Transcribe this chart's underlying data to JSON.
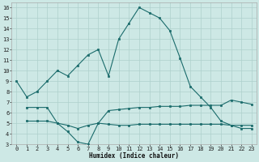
{
  "xlabel": "Humidex (Indice chaleur)",
  "ylabel": "",
  "bg_color": "#cde8e5",
  "line_color": "#1a6b6b",
  "grid_color": "#aed0cc",
  "xlim": [
    -0.5,
    23.5
  ],
  "ylim": [
    3,
    16.5
  ],
  "xticks": [
    0,
    1,
    2,
    3,
    4,
    5,
    6,
    7,
    8,
    9,
    10,
    11,
    12,
    13,
    14,
    15,
    16,
    17,
    18,
    19,
    20,
    21,
    22,
    23
  ],
  "yticks": [
    3,
    4,
    5,
    6,
    7,
    8,
    9,
    10,
    11,
    12,
    13,
    14,
    15,
    16
  ],
  "curve1_x": [
    0,
    1,
    2,
    3,
    4,
    5,
    6,
    7,
    8,
    9,
    10,
    11,
    12,
    13,
    14,
    15,
    16,
    17,
    18,
    19,
    20,
    21,
    22,
    23
  ],
  "curve1_y": [
    9.0,
    7.5,
    8.0,
    9.0,
    10.0,
    9.5,
    10.5,
    11.5,
    12.0,
    9.5,
    13.0,
    14.5,
    16.0,
    15.5,
    15.0,
    13.8,
    11.2,
    8.5,
    7.5,
    6.5,
    5.2,
    4.8,
    4.5,
    4.5
  ],
  "curve2_x": [
    1,
    2,
    3,
    4,
    5,
    6,
    7,
    8,
    9,
    10,
    11,
    12,
    13,
    14,
    15,
    16,
    17,
    18,
    19,
    20,
    21,
    22,
    23
  ],
  "curve2_y": [
    6.5,
    6.5,
    6.5,
    5.0,
    4.2,
    3.2,
    3.0,
    5.0,
    6.2,
    6.3,
    6.4,
    6.5,
    6.5,
    6.6,
    6.6,
    6.6,
    6.7,
    6.7,
    6.7,
    6.7,
    7.2,
    7.0,
    6.8
  ],
  "curve3_x": [
    1,
    2,
    3,
    4,
    5,
    6,
    7,
    8,
    9,
    10,
    11,
    12,
    13,
    14,
    15,
    16,
    17,
    18,
    19,
    20,
    21,
    22,
    23
  ],
  "curve3_y": [
    5.2,
    5.2,
    5.2,
    5.0,
    4.8,
    4.5,
    4.8,
    5.0,
    4.9,
    4.8,
    4.8,
    4.9,
    4.9,
    4.9,
    4.9,
    4.9,
    4.9,
    4.9,
    4.9,
    4.9,
    4.8,
    4.8,
    4.8
  ]
}
